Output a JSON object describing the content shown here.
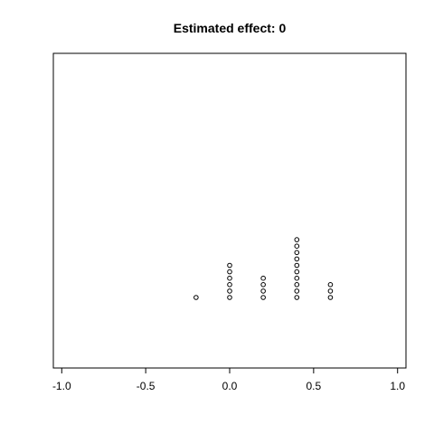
{
  "chart_data": {
    "type": "scatter",
    "title": "Estimated effect: 0",
    "xlabel": "",
    "ylabel": "",
    "xlim": [
      -1.05,
      1.05
    ],
    "x_ticks": [
      {
        "value": -1.0,
        "label": "-1.0"
      },
      {
        "value": -0.5,
        "label": "-0.5"
      },
      {
        "value": 0.0,
        "label": "0.0"
      },
      {
        "value": 0.5,
        "label": "0.5"
      },
      {
        "value": 1.0,
        "label": "1.0"
      }
    ],
    "stack_columns": [
      {
        "x": -0.2,
        "count": 1
      },
      {
        "x": 0.0,
        "count": 6
      },
      {
        "x": 0.2,
        "count": 4
      },
      {
        "x": 0.4,
        "count": 10
      },
      {
        "x": 0.6,
        "count": 3
      }
    ],
    "grid": false,
    "y_axis_visible": false,
    "point_style": "open-circle"
  }
}
